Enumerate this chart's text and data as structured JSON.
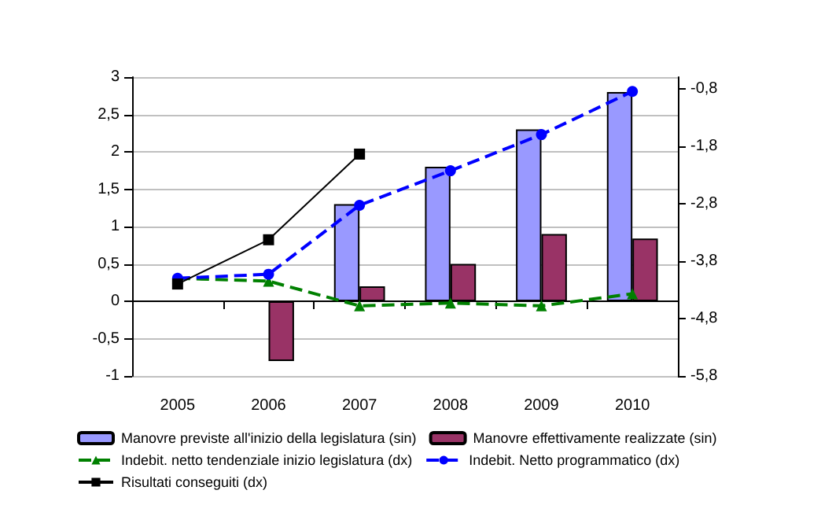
{
  "chart_data": {
    "type": "bar",
    "categories": [
      "2005",
      "2006",
      "2007",
      "2008",
      "2009",
      "2010"
    ],
    "series": [
      {
        "name": "Manovre previste all'inizio della legislatura (sin)",
        "color": "#9999ff",
        "values": [
          null,
          null,
          1.3,
          1.8,
          2.3,
          2.8
        ]
      },
      {
        "name": "Manovre effettivamente realizzate (sin)",
        "color": "#993366",
        "values": [
          null,
          -0.8,
          0.2,
          0.5,
          0.9,
          0.84
        ]
      },
      {
        "name": "Indebit. netto tendenziale inizio legislatura (dx)",
        "type": "line",
        "axis": "y2",
        "color": "#008000",
        "marker": "triangle",
        "line_style": "dashed",
        "values": [
          -4.1,
          -4.15,
          -4.58,
          -4.53,
          -4.58,
          -4.37
        ]
      },
      {
        "name": "Indebit. Netto programmatico (dx)",
        "type": "line",
        "axis": "y2",
        "color": "#0000ff",
        "marker": "circle",
        "line_style": "dashed",
        "values": [
          -4.1,
          -4.03,
          -2.83,
          -2.23,
          -1.6,
          -0.85
        ]
      },
      {
        "name": "Risultati conseguiti (dx)",
        "type": "line",
        "axis": "y2",
        "color": "#000000",
        "marker": "square",
        "line_style": "solid",
        "values": [
          -4.2,
          -3.43,
          -1.94,
          null,
          null,
          null
        ]
      }
    ],
    "ylim": [
      -1,
      3
    ],
    "yticks": [
      -1,
      {
        "value": -0.5,
        "label": "-0,5"
      },
      0,
      {
        "value": 0.5,
        "label": "0,5"
      },
      1,
      {
        "value": 1.5,
        "label": "1,5"
      },
      2,
      {
        "value": 2.5,
        "label": "2,5"
      },
      3
    ],
    "y2lim": [
      -5.8,
      -0.6
    ],
    "y2ticks": [
      {
        "value": -5.8,
        "label": "-5,8"
      },
      {
        "value": -4.8,
        "label": "-4,8"
      },
      {
        "value": -3.8,
        "label": "-3,8"
      },
      {
        "value": -2.8,
        "label": "-2,8"
      },
      {
        "value": -1.8,
        "label": "-1,8"
      },
      {
        "value": -0.8,
        "label": "-0,8"
      }
    ],
    "grid": "y",
    "legend": "bottom"
  }
}
